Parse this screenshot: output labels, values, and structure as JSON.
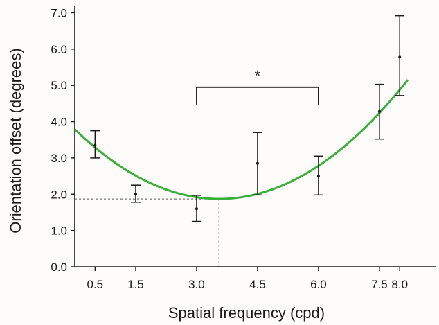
{
  "chart_data": {
    "type": "scatter",
    "title": "",
    "xlabel": "Spatial frequency (cpd)",
    "ylabel": "Orientation offset (degrees)",
    "x_ticks": [
      {
        "value": 0.5,
        "label": "0.5"
      },
      {
        "value": 1.5,
        "label": "1.5"
      },
      {
        "value": 3.0,
        "label": "3.0"
      },
      {
        "value": 4.5,
        "label": "4.5"
      },
      {
        "value": 6.0,
        "label": "6.0"
      },
      {
        "value": 7.5,
        "label": "7.5"
      },
      {
        "value": 8.0,
        "label": "8.0"
      }
    ],
    "y_ticks": [
      {
        "value": 0,
        "label": "0.0"
      },
      {
        "value": 1,
        "label": "1.0"
      },
      {
        "value": 2,
        "label": "2.0"
      },
      {
        "value": 3,
        "label": "3.0"
      },
      {
        "value": 4,
        "label": "4.0"
      },
      {
        "value": 5,
        "label": "5.0"
      },
      {
        "value": 6,
        "label": "6.0"
      },
      {
        "value": 7,
        "label": "7.0"
      }
    ],
    "xlim": [
      0,
      8.9
    ],
    "ylim": [
      0,
      7.2
    ],
    "grid": false,
    "series": [
      {
        "points": [
          {
            "x": 0.5,
            "y": 3.35,
            "lo": 3.0,
            "hi": 3.75
          },
          {
            "x": 1.5,
            "y": 2.0,
            "lo": 1.78,
            "hi": 2.25
          },
          {
            "x": 3.0,
            "y": 1.6,
            "lo": 1.25,
            "hi": 1.97
          },
          {
            "x": 4.5,
            "y": 2.85,
            "lo": 1.98,
            "hi": 3.7
          },
          {
            "x": 6.0,
            "y": 2.5,
            "lo": 1.98,
            "hi": 3.05
          },
          {
            "x": 7.5,
            "y": 4.28,
            "lo": 3.52,
            "hi": 5.03
          },
          {
            "x": 8.0,
            "y": 5.78,
            "lo": 4.72,
            "hi": 6.92
          }
        ]
      }
    ],
    "fit": {
      "type": "quadratic",
      "coefficients": {
        "a": 0.152,
        "b": -1.08,
        "c": 3.79
      },
      "x_range": [
        0.0,
        8.2
      ],
      "color": "#3aae3a"
    },
    "minimum_marker": {
      "x": 3.55,
      "y": 1.87
    },
    "significance": {
      "x1": 3.0,
      "x2": 6.0,
      "y": 4.95,
      "label": "*"
    }
  }
}
